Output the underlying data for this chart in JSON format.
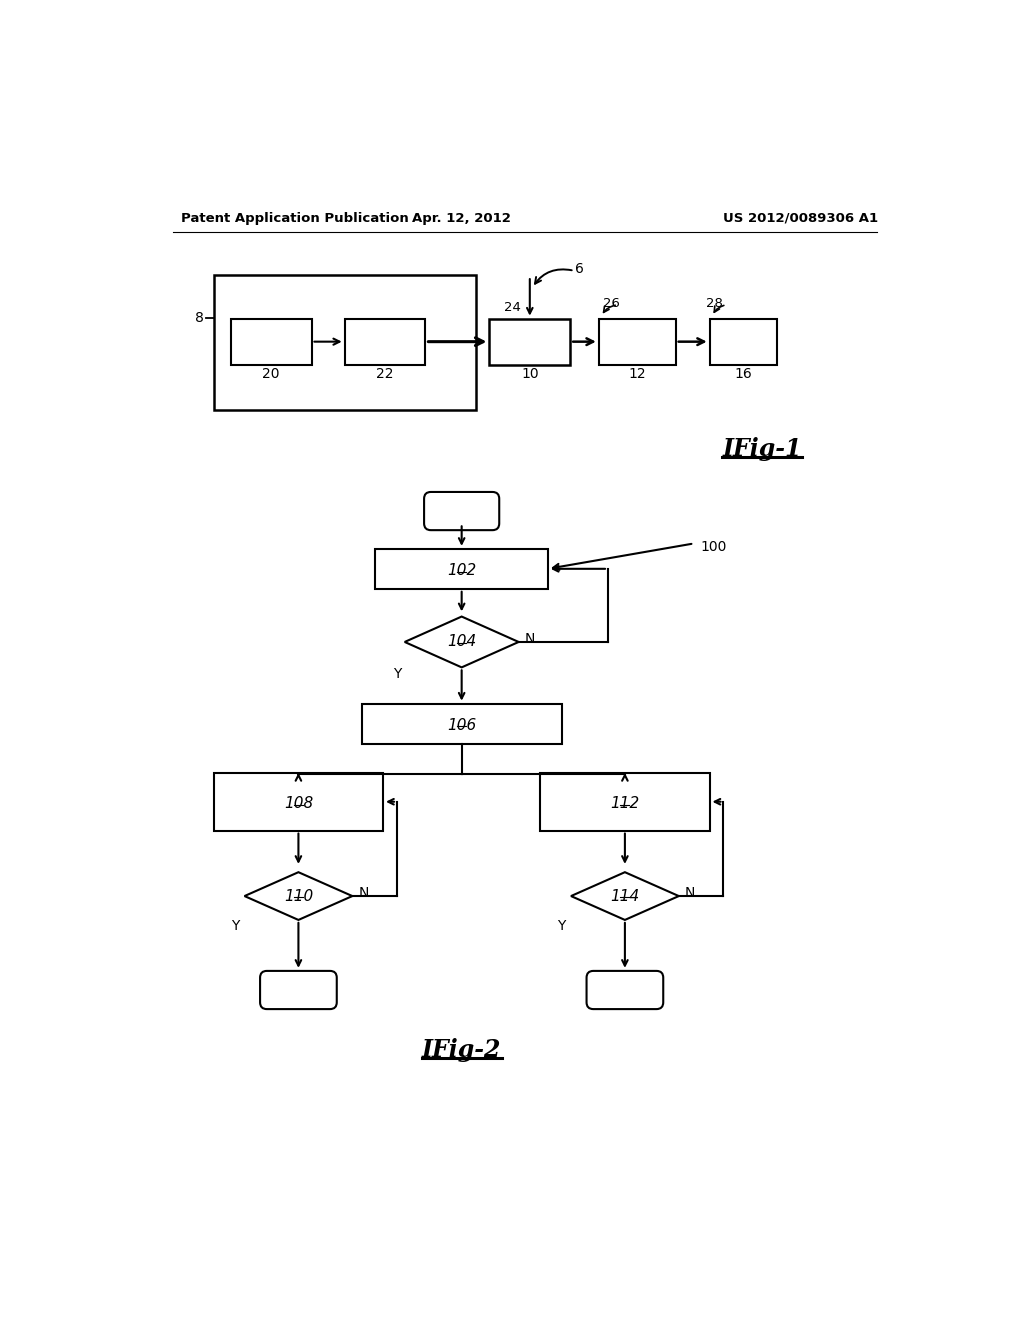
{
  "bg_color": "#ffffff",
  "header_left": "Patent Application Publication",
  "header_center": "Apr. 12, 2012",
  "header_right": "US 2012/0089306 A1",
  "fig1_label": "IFig-1",
  "fig2_label": "IFig-2"
}
